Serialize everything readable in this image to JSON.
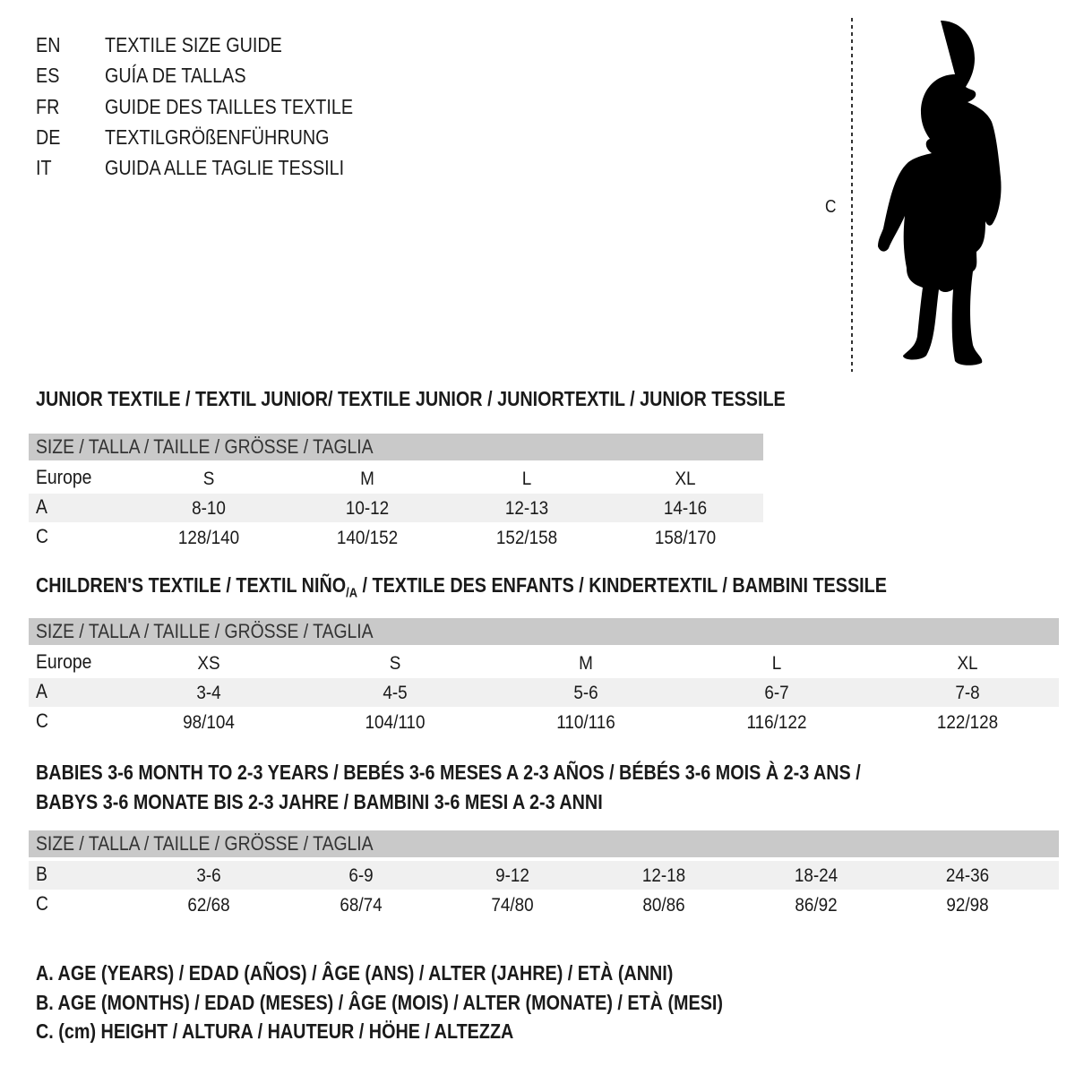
{
  "languages": [
    {
      "code": "EN",
      "title": "TEXTILE SIZE GUIDE"
    },
    {
      "code": "ES",
      "title": "GUÍA DE TALLAS"
    },
    {
      "code": "FR",
      "title": "GUIDE DES TAILLES TEXTILE"
    },
    {
      "code": "DE",
      "title": "TEXTILGRÖßENFÜHRUNG"
    },
    {
      "code": "IT",
      "title": "GUIDA ALLE TAGLIE TESSILI"
    }
  ],
  "figure": {
    "height_label": "C",
    "icon": "child-silhouette-icon"
  },
  "size_header": "SIZE / TALLA / TAILLE / GRÖSSE / TAGLIA",
  "junior": {
    "title": "JUNIOR TEXTILE / TEXTIL JUNIOR/ TEXTILE JUNIOR / JUNIORTEXTIL / JUNIOR TESSILE",
    "rows": [
      {
        "label": "Europe",
        "values": [
          "S",
          "M",
          "L",
          "XL"
        ]
      },
      {
        "label": "A",
        "values": [
          "8-10",
          "10-12",
          "12-13",
          "14-16"
        ]
      },
      {
        "label": "C",
        "values": [
          "128/140",
          "140/152",
          "152/158",
          "158/170"
        ]
      }
    ]
  },
  "children": {
    "title_a": "CHILDREN'S TEXTILE / TEXTIL NIÑO",
    "title_sub": "/A",
    "title_b": " / TEXTILE DES ENFANTS / KINDERTEXTIL / BAMBINI TESSILE",
    "rows": [
      {
        "label": "Europe",
        "values": [
          "XS",
          "S",
          "M",
          "L",
          "XL"
        ]
      },
      {
        "label": "A",
        "values": [
          "3-4",
          "4-5",
          "5-6",
          "6-7",
          "7-8"
        ]
      },
      {
        "label": "C",
        "values": [
          "98/104",
          "104/110",
          "110/116",
          "116/122",
          "122/128"
        ]
      }
    ]
  },
  "babies": {
    "title_1": "BABIES 3-6 MONTH TO 2-3 YEARS / BEBÉS 3-6 MESES A 2-3 AÑOS / BÉBÉS 3-6 MOIS À 2-3 ANS /",
    "title_2": "BABYS 3-6 MONATE BIS 2-3 JAHRE / BAMBINI 3-6 MESI A 2-3 ANNI",
    "rows": [
      {
        "label": "B",
        "values": [
          "3-6",
          "6-9",
          "9-12",
          "12-18",
          "18-24",
          "24-36"
        ]
      },
      {
        "label": "C",
        "values": [
          "62/68",
          "68/74",
          "74/80",
          "80/86",
          "86/92",
          "92/98"
        ]
      }
    ]
  },
  "legend": [
    "A. AGE (YEARS) / EDAD (AÑOS) / ÂGE (ANS) / ALTER (JAHRE) / ETÀ (ANNI)",
    "B. AGE (MONTHS) / EDAD (MESES) / ÂGE (MOIS) / ALTER (MONATE) / ETÀ (MESI)",
    "C. (cm) HEIGHT / ALTURA / HAUTEUR / HÖHE / ALTEZZA"
  ]
}
